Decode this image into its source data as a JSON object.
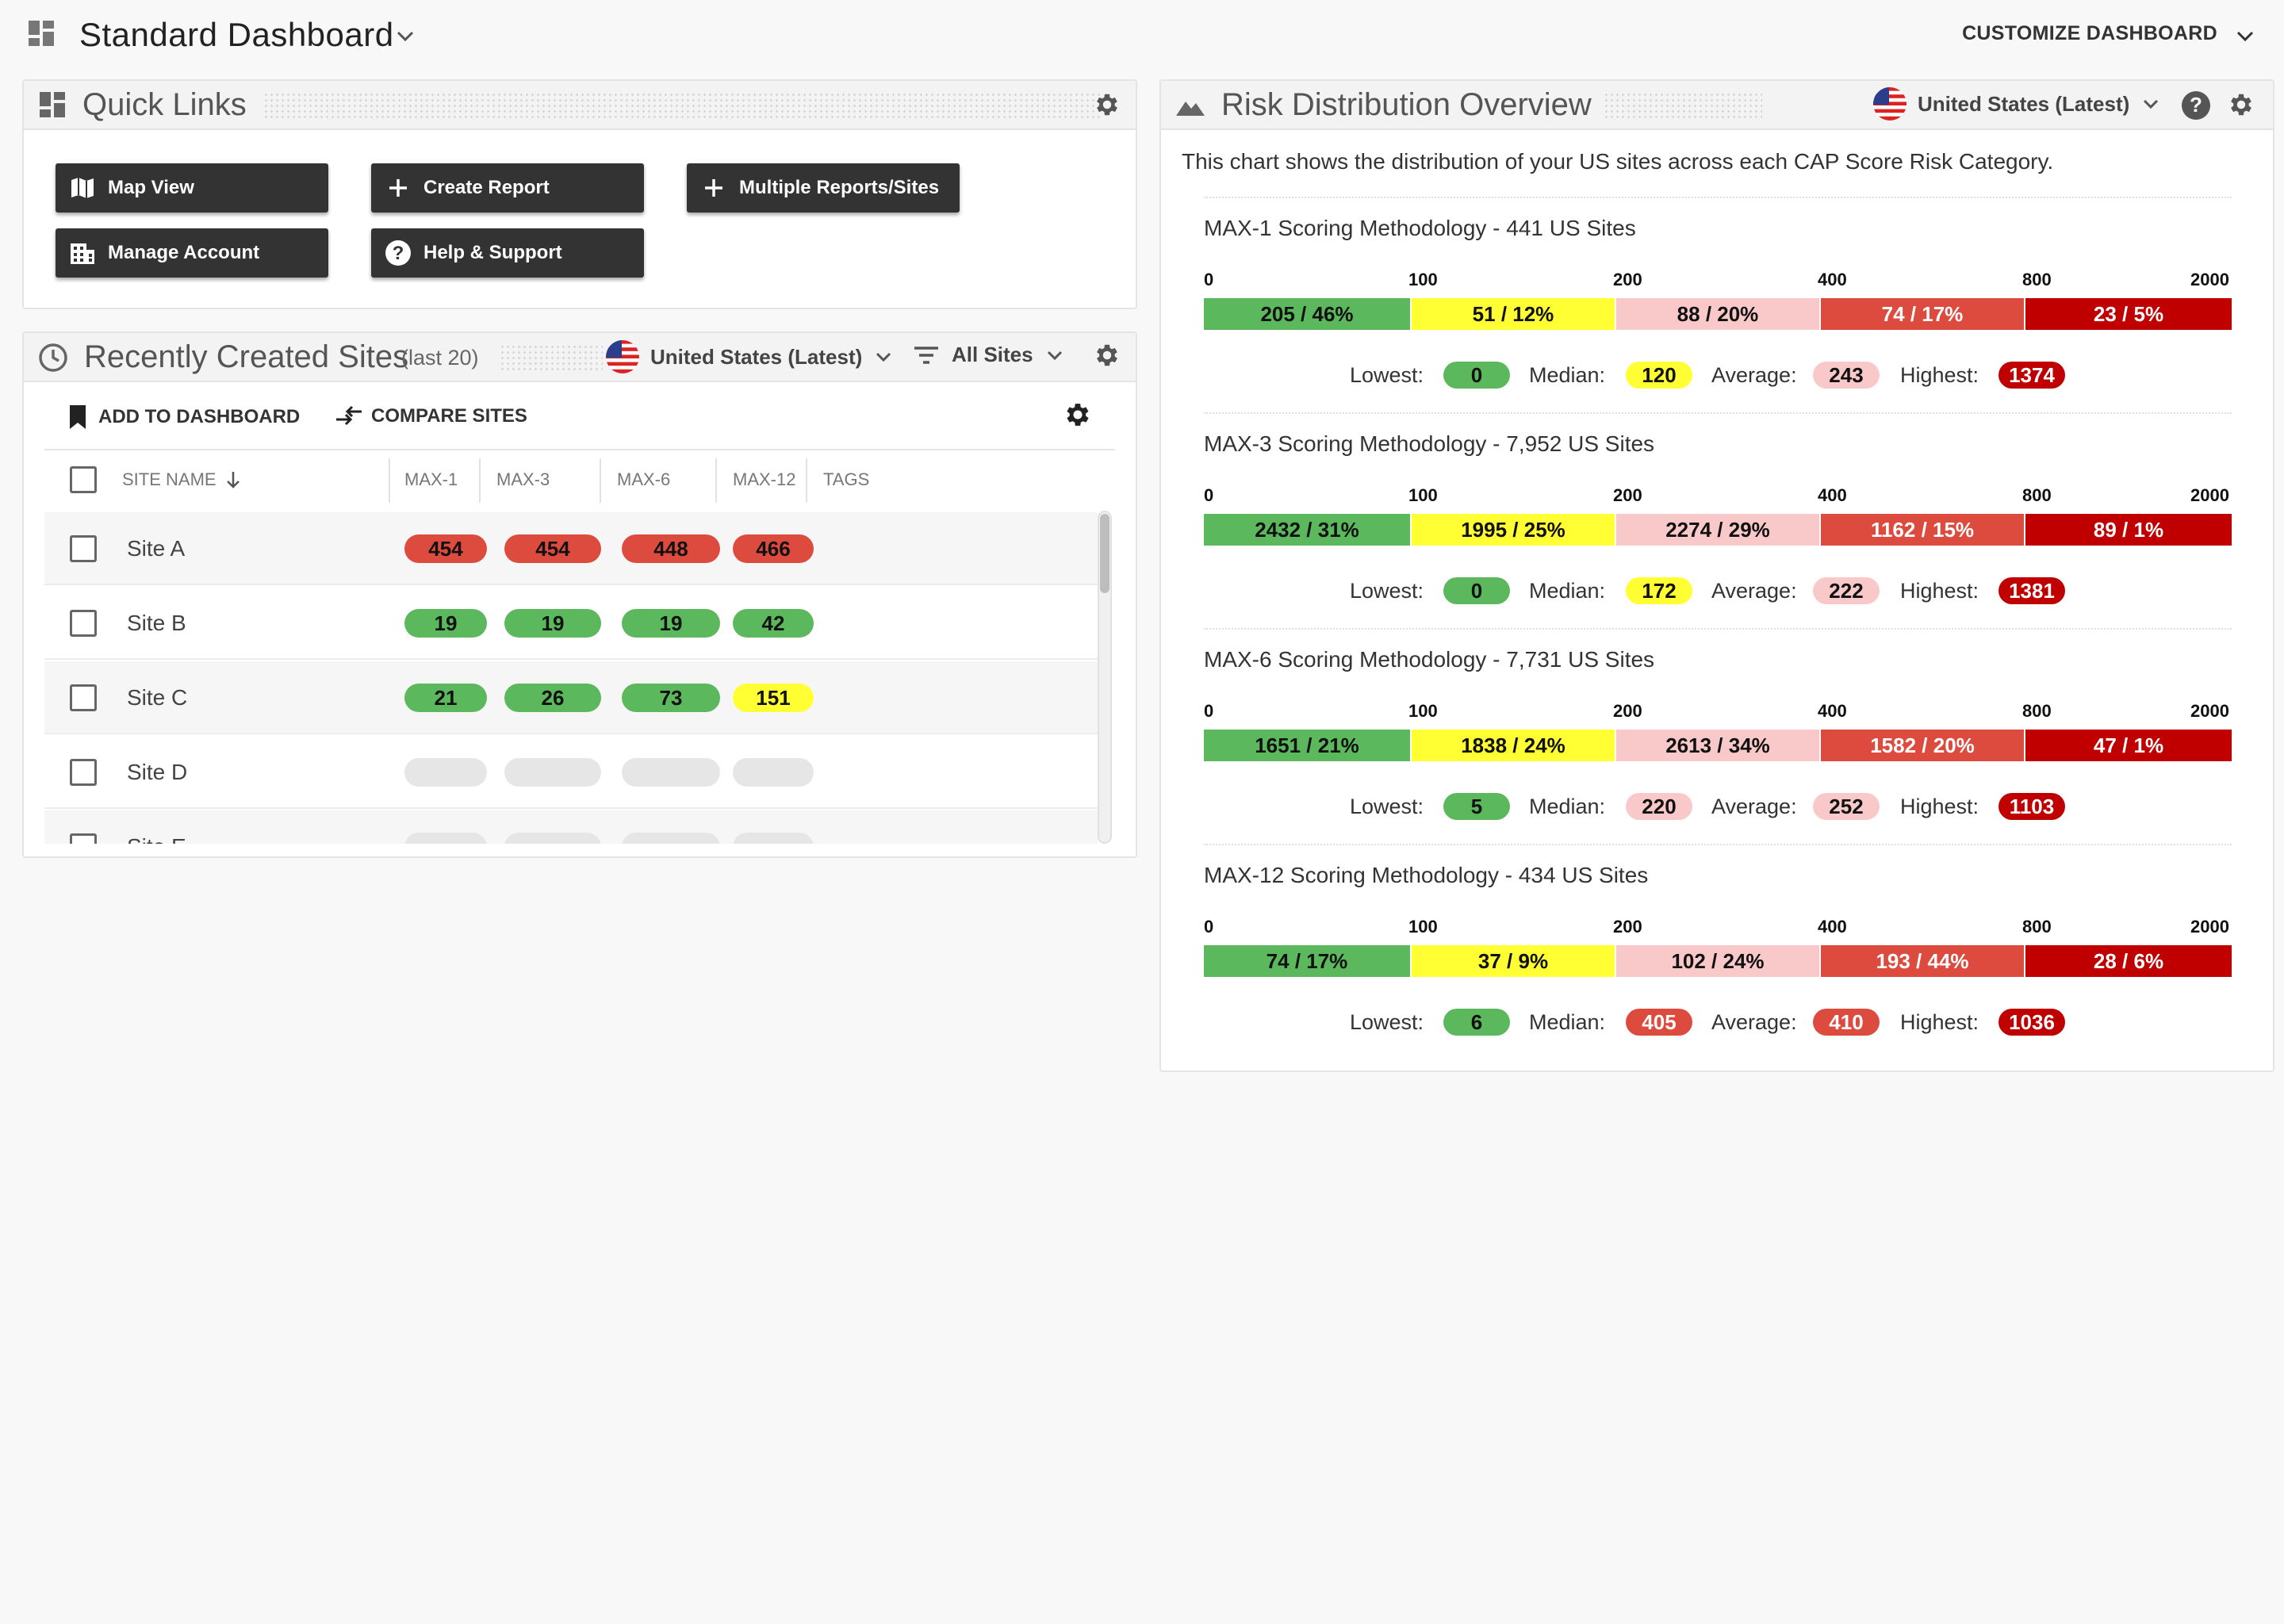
{
  "header": {
    "title": "Standard Dashboard",
    "customize_label": "CUSTOMIZE DASHBOARD"
  },
  "quick_links": {
    "title": "Quick Links",
    "buttons": [
      {
        "label": "Map View",
        "icon": "map-icon"
      },
      {
        "label": "Create Report",
        "icon": "plus-icon"
      },
      {
        "label": "Multiple Reports/Sites",
        "icon": "plus-icon"
      },
      {
        "label": "Manage Account",
        "icon": "building-icon"
      },
      {
        "label": "Help & Support",
        "icon": "help-icon"
      }
    ]
  },
  "recent_sites": {
    "title": "Recently Created Sites",
    "subtitle": "(last 20)",
    "country": "United States (Latest)",
    "filter": "All Sites",
    "add_to_dashboard": "ADD TO DASHBOARD",
    "compare_sites": "COMPARE SITES",
    "columns": [
      "SITE NAME",
      "MAX-1",
      "MAX-3",
      "MAX-6",
      "MAX-12",
      "TAGS"
    ],
    "rows": [
      {
        "name": "Site A",
        "scores": [
          "454",
          "454",
          "448",
          "466"
        ],
        "colors": [
          "#dd4b3e",
          "#dd4b3e",
          "#dd4b3e",
          "#dd4b3e"
        ]
      },
      {
        "name": "Site B",
        "scores": [
          "19",
          "19",
          "19",
          "42"
        ],
        "colors": [
          "#5cb85c",
          "#5cb85c",
          "#5cb85c",
          "#5cb85c"
        ]
      },
      {
        "name": "Site C",
        "scores": [
          "21",
          "26",
          "73",
          "151"
        ],
        "colors": [
          "#5cb85c",
          "#5cb85c",
          "#5cb85c",
          "#ffff33"
        ]
      },
      {
        "name": "Site D",
        "scores": [
          "",
          "",
          "",
          ""
        ],
        "colors": [
          "#e6e6e6",
          "#e6e6e6",
          "#e6e6e6",
          "#e6e6e6"
        ]
      },
      {
        "name": "Site E",
        "scores": [
          "",
          "",
          "",
          ""
        ],
        "colors": [
          "#e6e6e6",
          "#e6e6e6",
          "#e6e6e6",
          "#e6e6e6"
        ]
      }
    ]
  },
  "risk": {
    "title": "Risk Distribution Overview",
    "country": "United States (Latest)",
    "description": "This chart shows the distribution of your US sites across each CAP Score Risk Category.",
    "ticks": [
      "0",
      "100",
      "200",
      "400",
      "800",
      "2000"
    ],
    "stat_labels": {
      "lowest": "Lowest:",
      "median": "Median:",
      "average": "Average:",
      "highest": "Highest:"
    },
    "category_colors": [
      "#5cb85c",
      "#ffff33",
      "#f9c9c9",
      "#dd4b3e",
      "#c00000"
    ],
    "methods": [
      {
        "title": "MAX-1 Scoring Methodology - 441 US Sites",
        "segments": [
          "205 / 46%",
          "51 / 12%",
          "88 / 20%",
          "74 / 17%",
          "23 / 5%"
        ],
        "lowest": "0",
        "median": "120",
        "average": "243",
        "highest": "1374",
        "lowest_color": "#5cb85c",
        "median_color": "#ffff33",
        "average_color": "#f9c9c9",
        "highest_color": "#c00000"
      },
      {
        "title": "MAX-3 Scoring Methodology - 7,952 US Sites",
        "segments": [
          "2432 / 31%",
          "1995 / 25%",
          "2274 / 29%",
          "1162 / 15%",
          "89 / 1%"
        ],
        "lowest": "0",
        "median": "172",
        "average": "222",
        "highest": "1381",
        "lowest_color": "#5cb85c",
        "median_color": "#ffff33",
        "average_color": "#f9c9c9",
        "highest_color": "#c00000"
      },
      {
        "title": "MAX-6 Scoring Methodology - 7,731 US Sites",
        "segments": [
          "1651 / 21%",
          "1838 / 24%",
          "2613 / 34%",
          "1582 / 20%",
          "47 / 1%"
        ],
        "lowest": "5",
        "median": "220",
        "average": "252",
        "highest": "1103",
        "lowest_color": "#5cb85c",
        "median_color": "#f9c9c9",
        "average_color": "#f9c9c9",
        "highest_color": "#c00000"
      },
      {
        "title": "MAX-12 Scoring Methodology - 434 US Sites",
        "segments": [
          "74 / 17%",
          "37 / 9%",
          "102 / 24%",
          "193 / 44%",
          "28 / 6%"
        ],
        "lowest": "6",
        "median": "405",
        "average": "410",
        "highest": "1036",
        "lowest_color": "#5cb85c",
        "median_color": "#dd4b3e",
        "average_color": "#dd4b3e",
        "highest_color": "#c00000"
      }
    ]
  }
}
